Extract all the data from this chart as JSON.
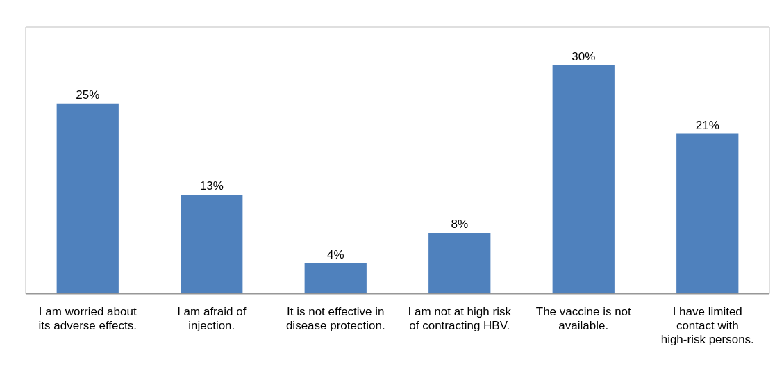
{
  "chart_data": {
    "type": "bar",
    "categories": [
      "I am worried about its adverse effects.",
      "I am afraid of injection.",
      "It is not effective in disease protection.",
      "I am not at high risk of contracting HBV.",
      "The vaccine is not available.",
      "I have limited contact with high-risk persons."
    ],
    "values": [
      25,
      13,
      4,
      8,
      30,
      21
    ],
    "value_labels": [
      "25%",
      "13%",
      "4%",
      "8%",
      "30%",
      "21%"
    ],
    "color": "#4f81bd",
    "grid": false,
    "legend": false
  }
}
